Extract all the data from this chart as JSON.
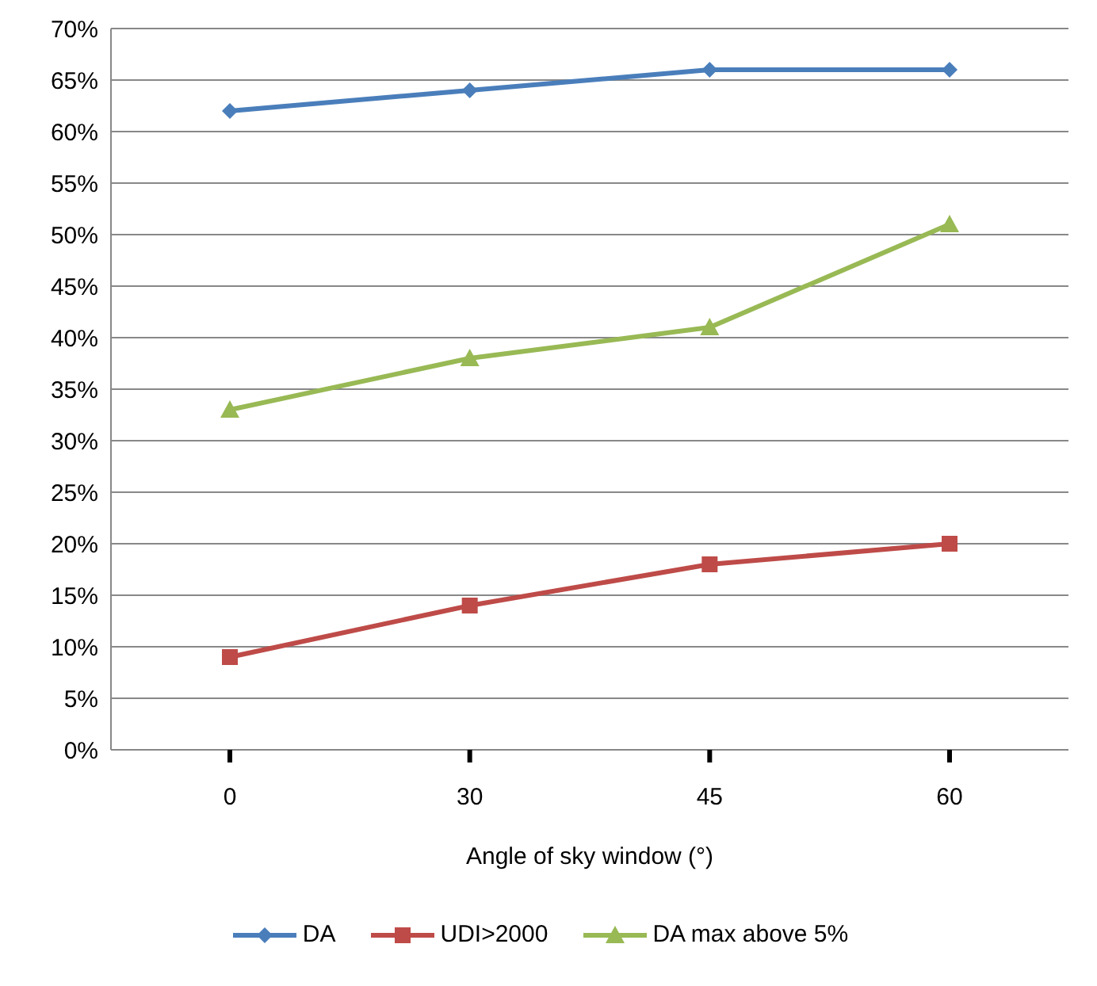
{
  "chart_data": {
    "type": "line",
    "xlabel": "Angle of sky window (°)",
    "categories": [
      "0",
      "30",
      "45",
      "60"
    ],
    "series": [
      {
        "name": "DA",
        "color": "#4a7ebb",
        "marker": "diamond",
        "values": [
          62,
          64,
          66,
          66
        ]
      },
      {
        "name": "UDI>2000",
        "color": "#be4b48",
        "marker": "square",
        "values": [
          9,
          14,
          18,
          20
        ]
      },
      {
        "name": "DA max above 5%",
        "color": "#98b954",
        "marker": "triangle",
        "values": [
          33,
          38,
          41,
          51
        ]
      }
    ],
    "ylim": [
      0,
      70
    ],
    "yticks": [
      {
        "value": 0,
        "label": "0%"
      },
      {
        "value": 5,
        "label": "5%"
      },
      {
        "value": 10,
        "label": "10%"
      },
      {
        "value": 15,
        "label": "15%"
      },
      {
        "value": 20,
        "label": "20%"
      },
      {
        "value": 25,
        "label": "25%"
      },
      {
        "value": 30,
        "label": "30%"
      },
      {
        "value": 35,
        "label": "35%"
      },
      {
        "value": 40,
        "label": "40%"
      },
      {
        "value": 45,
        "label": "45%"
      },
      {
        "value": 50,
        "label": "50%"
      },
      {
        "value": 55,
        "label": "55%"
      },
      {
        "value": 60,
        "label": "60%"
      },
      {
        "value": 65,
        "label": "65%"
      },
      {
        "value": 70,
        "label": "70%"
      }
    ],
    "grid": "y",
    "legend": "bottom",
    "line_style": "solid"
  }
}
